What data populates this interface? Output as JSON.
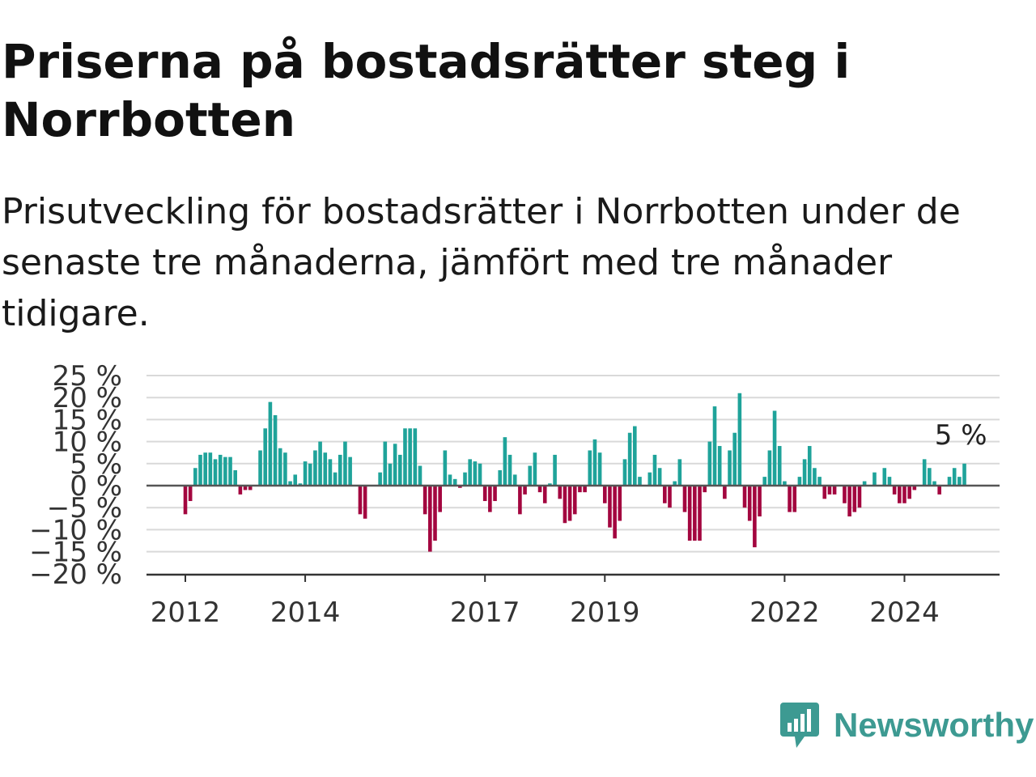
{
  "header": {
    "title": "Priserna på bostadsrätter steg i Norrbotten",
    "subtitle": "Prisutveckling för bostadsrätter i Norrbotten under de senaste tre månaderna, jämfört med tre månader tidigare."
  },
  "brand": {
    "name": "Newsworthy",
    "icon": "newsworthy-logo-icon"
  },
  "colors": {
    "positive": "#1fa39a",
    "negative": "#a3063f",
    "grid": "#d9d9d9",
    "baseline": "#555555"
  },
  "chart_data": {
    "type": "bar",
    "title": "Priserna på bostadsrätter steg i Norrbotten",
    "x_ticks": [
      "2012",
      "2014",
      "2017",
      "2019",
      "2022",
      "2024"
    ],
    "y_ticks": [
      "25 %",
      "20 %",
      "15 %",
      "10 %",
      "5 %",
      "0 %",
      "−5 %",
      "−10 %",
      "−15 %",
      "−20 %"
    ],
    "ylim": [
      -20,
      25
    ],
    "grid": true,
    "unit": "%",
    "last_value_label": "5 %",
    "series": [
      {
        "values": [
          -6.5,
          -3.5,
          4,
          7,
          7.5,
          7.5,
          6,
          7,
          6.5,
          6.5,
          3.5,
          -2,
          -1,
          -1,
          0,
          8,
          13,
          19,
          16,
          8.5,
          7.5,
          1,
          2.5,
          0.5,
          5.5,
          5,
          8,
          10,
          7.5,
          6,
          3,
          7,
          10,
          6.5,
          0,
          -6.5,
          -7.5,
          0,
          0,
          3,
          10,
          5,
          9.5,
          7,
          13,
          13,
          13,
          4.5,
          -6.5,
          -15,
          -12.5,
          -6,
          8,
          2.5,
          1.5,
          -0.5,
          3,
          6,
          5.5,
          5,
          -3.5,
          -6,
          -3.5,
          3.5,
          11,
          7,
          2.5,
          -6.5,
          -2,
          4.5,
          7.5,
          -1.5,
          -4,
          0.5,
          7,
          -3,
          -8.5,
          -8,
          -6.5,
          -1.5,
          -1.5,
          8,
          10.5,
          7.5,
          -4,
          -9.5,
          -12,
          -8,
          6,
          12,
          13.5,
          2,
          0,
          3,
          7,
          4,
          -4,
          -5,
          1,
          6,
          -6,
          -12.5,
          -12.5,
          -12.5,
          -1.5,
          10,
          18,
          9,
          -3,
          8,
          12,
          21,
          -5,
          -8,
          -14,
          -7,
          2,
          8,
          17,
          9,
          1,
          -6,
          -6,
          2,
          6,
          9,
          4,
          2,
          -3,
          -2,
          -2,
          0,
          -4,
          -7,
          -6,
          -5,
          1,
          0,
          3,
          0,
          4,
          2,
          -2,
          -4,
          -4,
          -3,
          -1,
          0,
          6,
          4,
          1,
          -2,
          0,
          2,
          4,
          2,
          5
        ]
      }
    ]
  }
}
